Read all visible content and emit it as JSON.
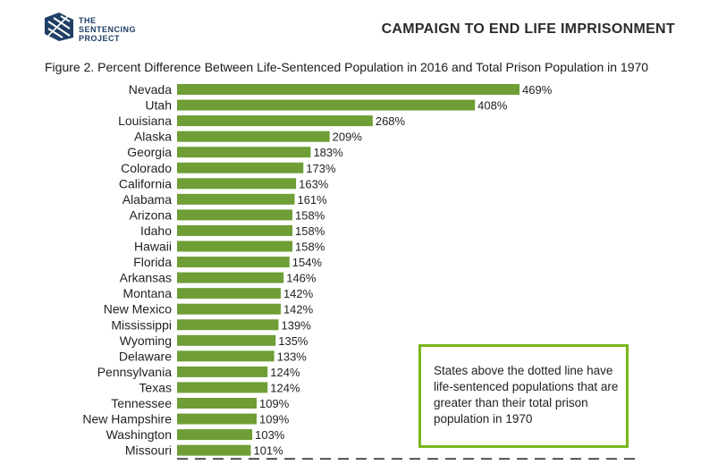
{
  "header": {
    "logo_line1": "THE",
    "logo_line2": "SENTENCING",
    "logo_line3": "PROJECT",
    "campaign_title": "CAMPAIGN TO END LIFE IMPRISONMENT"
  },
  "callout": {
    "text": "States above the dotted line have life-sentenced populations that are greater than their total prison population in 1970"
  },
  "colors": {
    "bar": "#6e9e35",
    "callout_border": "#7ab51d",
    "logo": "#1f3f66"
  },
  "chart_data": {
    "type": "bar",
    "orientation": "horizontal",
    "title": "Figure 2. Percent Difference Between Life-Sentenced Population in 2016 and Total Prison Population in 1970",
    "xlabel": "",
    "ylabel": "",
    "xlim": [
      0,
      500
    ],
    "value_suffix": "%",
    "reference_line": {
      "value": 100,
      "style": "dashed",
      "note": "dotted line below Missouri"
    },
    "categories": [
      "Nevada",
      "Utah",
      "Louisiana",
      "Alaska",
      "Georgia",
      "Colorado",
      "California",
      "Alabama",
      "Arizona",
      "Idaho",
      "Hawaii",
      "Florida",
      "Arkansas",
      "Montana",
      "New Mexico",
      "Mississippi",
      "Wyoming",
      "Delaware",
      "Pennsylvania",
      "Texas",
      "Tennessee",
      "New Hampshire",
      "Washington",
      "Missouri"
    ],
    "values": [
      469,
      408,
      268,
      209,
      183,
      173,
      163,
      161,
      158,
      158,
      158,
      154,
      146,
      142,
      142,
      139,
      135,
      133,
      124,
      124,
      109,
      109,
      103,
      101
    ]
  }
}
